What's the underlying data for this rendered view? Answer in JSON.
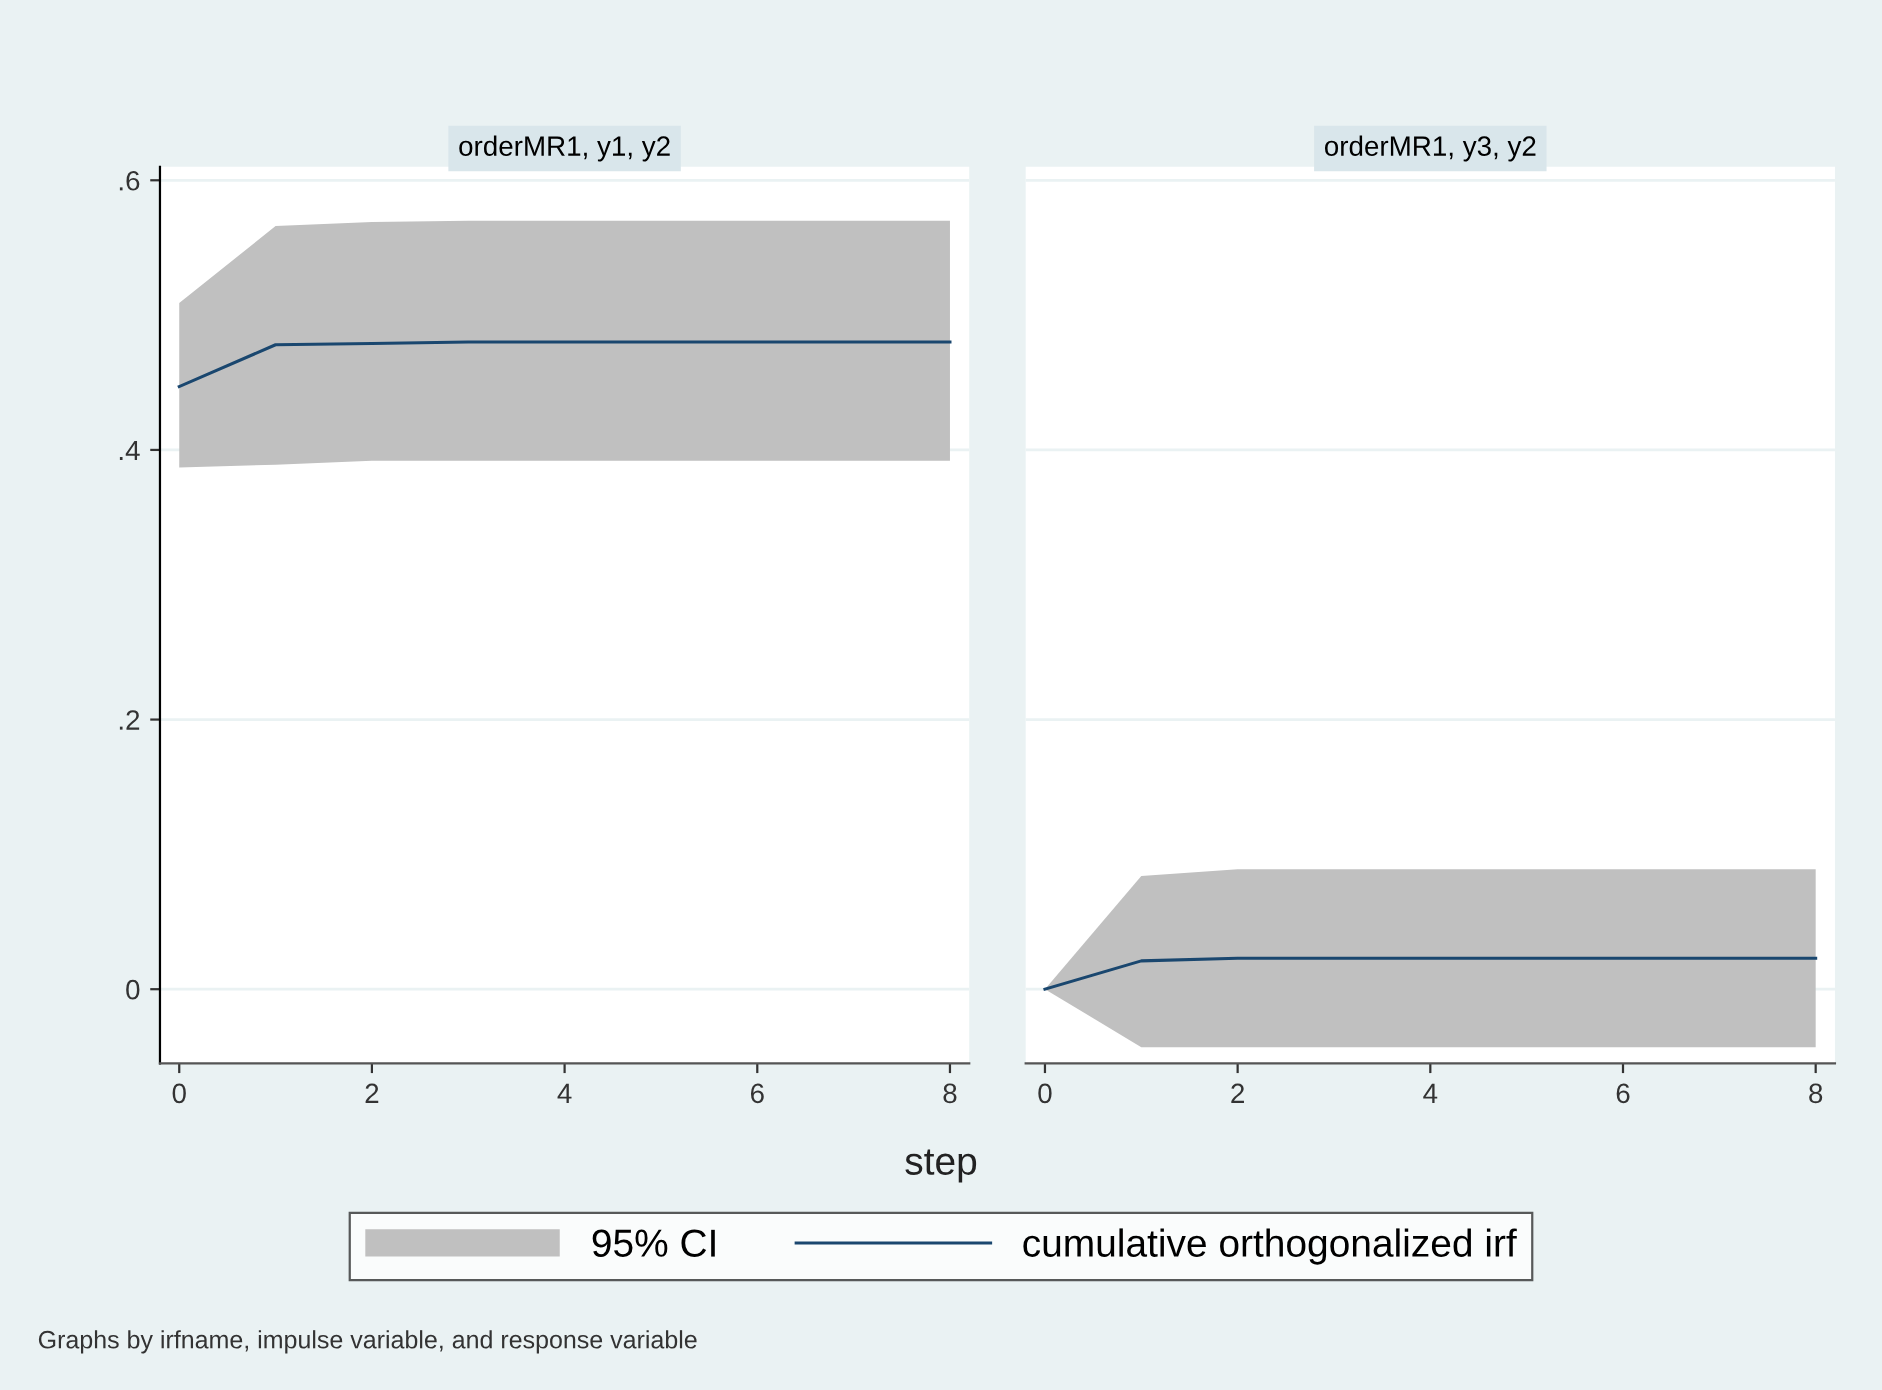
{
  "chart_data": [
    {
      "type": "line",
      "title": "orderMR1, y1, y2",
      "xlabel": "step",
      "x": [
        0,
        1,
        2,
        3,
        4,
        5,
        6,
        7,
        8
      ],
      "series": [
        {
          "name": "cumulative orthogonalized irf",
          "color": "#1a476f",
          "values": [
            0.447,
            0.478,
            0.479,
            0.48,
            0.48,
            0.48,
            0.48,
            0.48,
            0.48
          ],
          "lower": [
            0.387,
            0.389,
            0.392,
            0.392,
            0.392,
            0.392,
            0.392,
            0.392,
            0.392
          ],
          "upper": [
            0.509,
            0.566,
            0.569,
            0.57,
            0.57,
            0.57,
            0.57,
            0.57,
            0.57
          ]
        }
      ],
      "xlim": [
        -0.2,
        8.2
      ],
      "ylim": [
        -0.055,
        0.61
      ],
      "xticks": [
        0,
        2,
        4,
        6,
        8
      ],
      "yticks": [
        {
          "value": 0,
          "label": "0"
        },
        {
          "value": 0.2,
          "label": ".2"
        },
        {
          "value": 0.4,
          "label": ".4"
        },
        {
          "value": 0.6,
          "label": ".6"
        }
      ],
      "grid": "y",
      "legend": "bottom",
      "annotations": [
        "95% CI",
        "Graphs by irfname, impulse variable, and response variable"
      ]
    },
    {
      "type": "line",
      "title": "orderMR1, y3, y2",
      "x": [
        0,
        1,
        2,
        3,
        4,
        5,
        6,
        7,
        8
      ],
      "series": [
        {
          "color": "#1a476f",
          "values": [
            0,
            0.021,
            0.023,
            0.023,
            0.023,
            0.023,
            0.023,
            0.023,
            0.023
          ],
          "lower": [
            0,
            -0.043,
            -0.043,
            -0.043,
            -0.043,
            -0.043,
            -0.043,
            -0.043,
            -0.043
          ],
          "upper": [
            0,
            0.084,
            0.089,
            0.089,
            0.089,
            0.089,
            0.089,
            0.089,
            0.089
          ]
        }
      ],
      "xlim": [
        -0.2,
        8.2
      ],
      "ylim": [
        -0.055,
        0.61
      ],
      "xticks": [
        0,
        2,
        4,
        6,
        8
      ],
      "grid": "y",
      "tick_labels": "x"
    }
  ]
}
